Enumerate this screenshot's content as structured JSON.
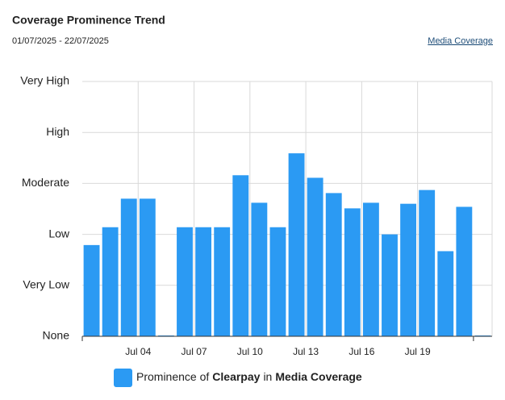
{
  "chart_data": {
    "type": "bar",
    "title": "Coverage Prominence Trend",
    "subtitle": "01/07/2025 - 22/07/2025",
    "link": "Media Coverage",
    "categories": [
      null,
      null,
      null,
      "Jul 04",
      null,
      null,
      "Jul 07",
      null,
      null,
      "Jul 10",
      null,
      null,
      "Jul 13",
      null,
      null,
      "Jul 16",
      null,
      null,
      "Jul 19",
      null,
      null,
      null
    ],
    "values": [
      1.79,
      2.14,
      2.7,
      2.7,
      0,
      2.14,
      2.14,
      2.14,
      3.16,
      2.62,
      2.14,
      3.59,
      3.11,
      2.81,
      2.51,
      2.62,
      2.0,
      2.6,
      2.87,
      1.67,
      2.54,
      0
    ],
    "color": "#2b9af3",
    "ylim": [
      0,
      5
    ],
    "yticks": [
      {
        "value": 0,
        "label": "None"
      },
      {
        "value": 1,
        "label": "Very Low"
      },
      {
        "value": 2,
        "label": "Low"
      },
      {
        "value": 3,
        "label": "Moderate"
      },
      {
        "value": 4,
        "label": "High"
      },
      {
        "value": 5,
        "label": "Very High"
      }
    ],
    "grid": true,
    "legend": [
      "Prominence of",
      "Clearpay",
      "in",
      "Media Coverage"
    ]
  }
}
